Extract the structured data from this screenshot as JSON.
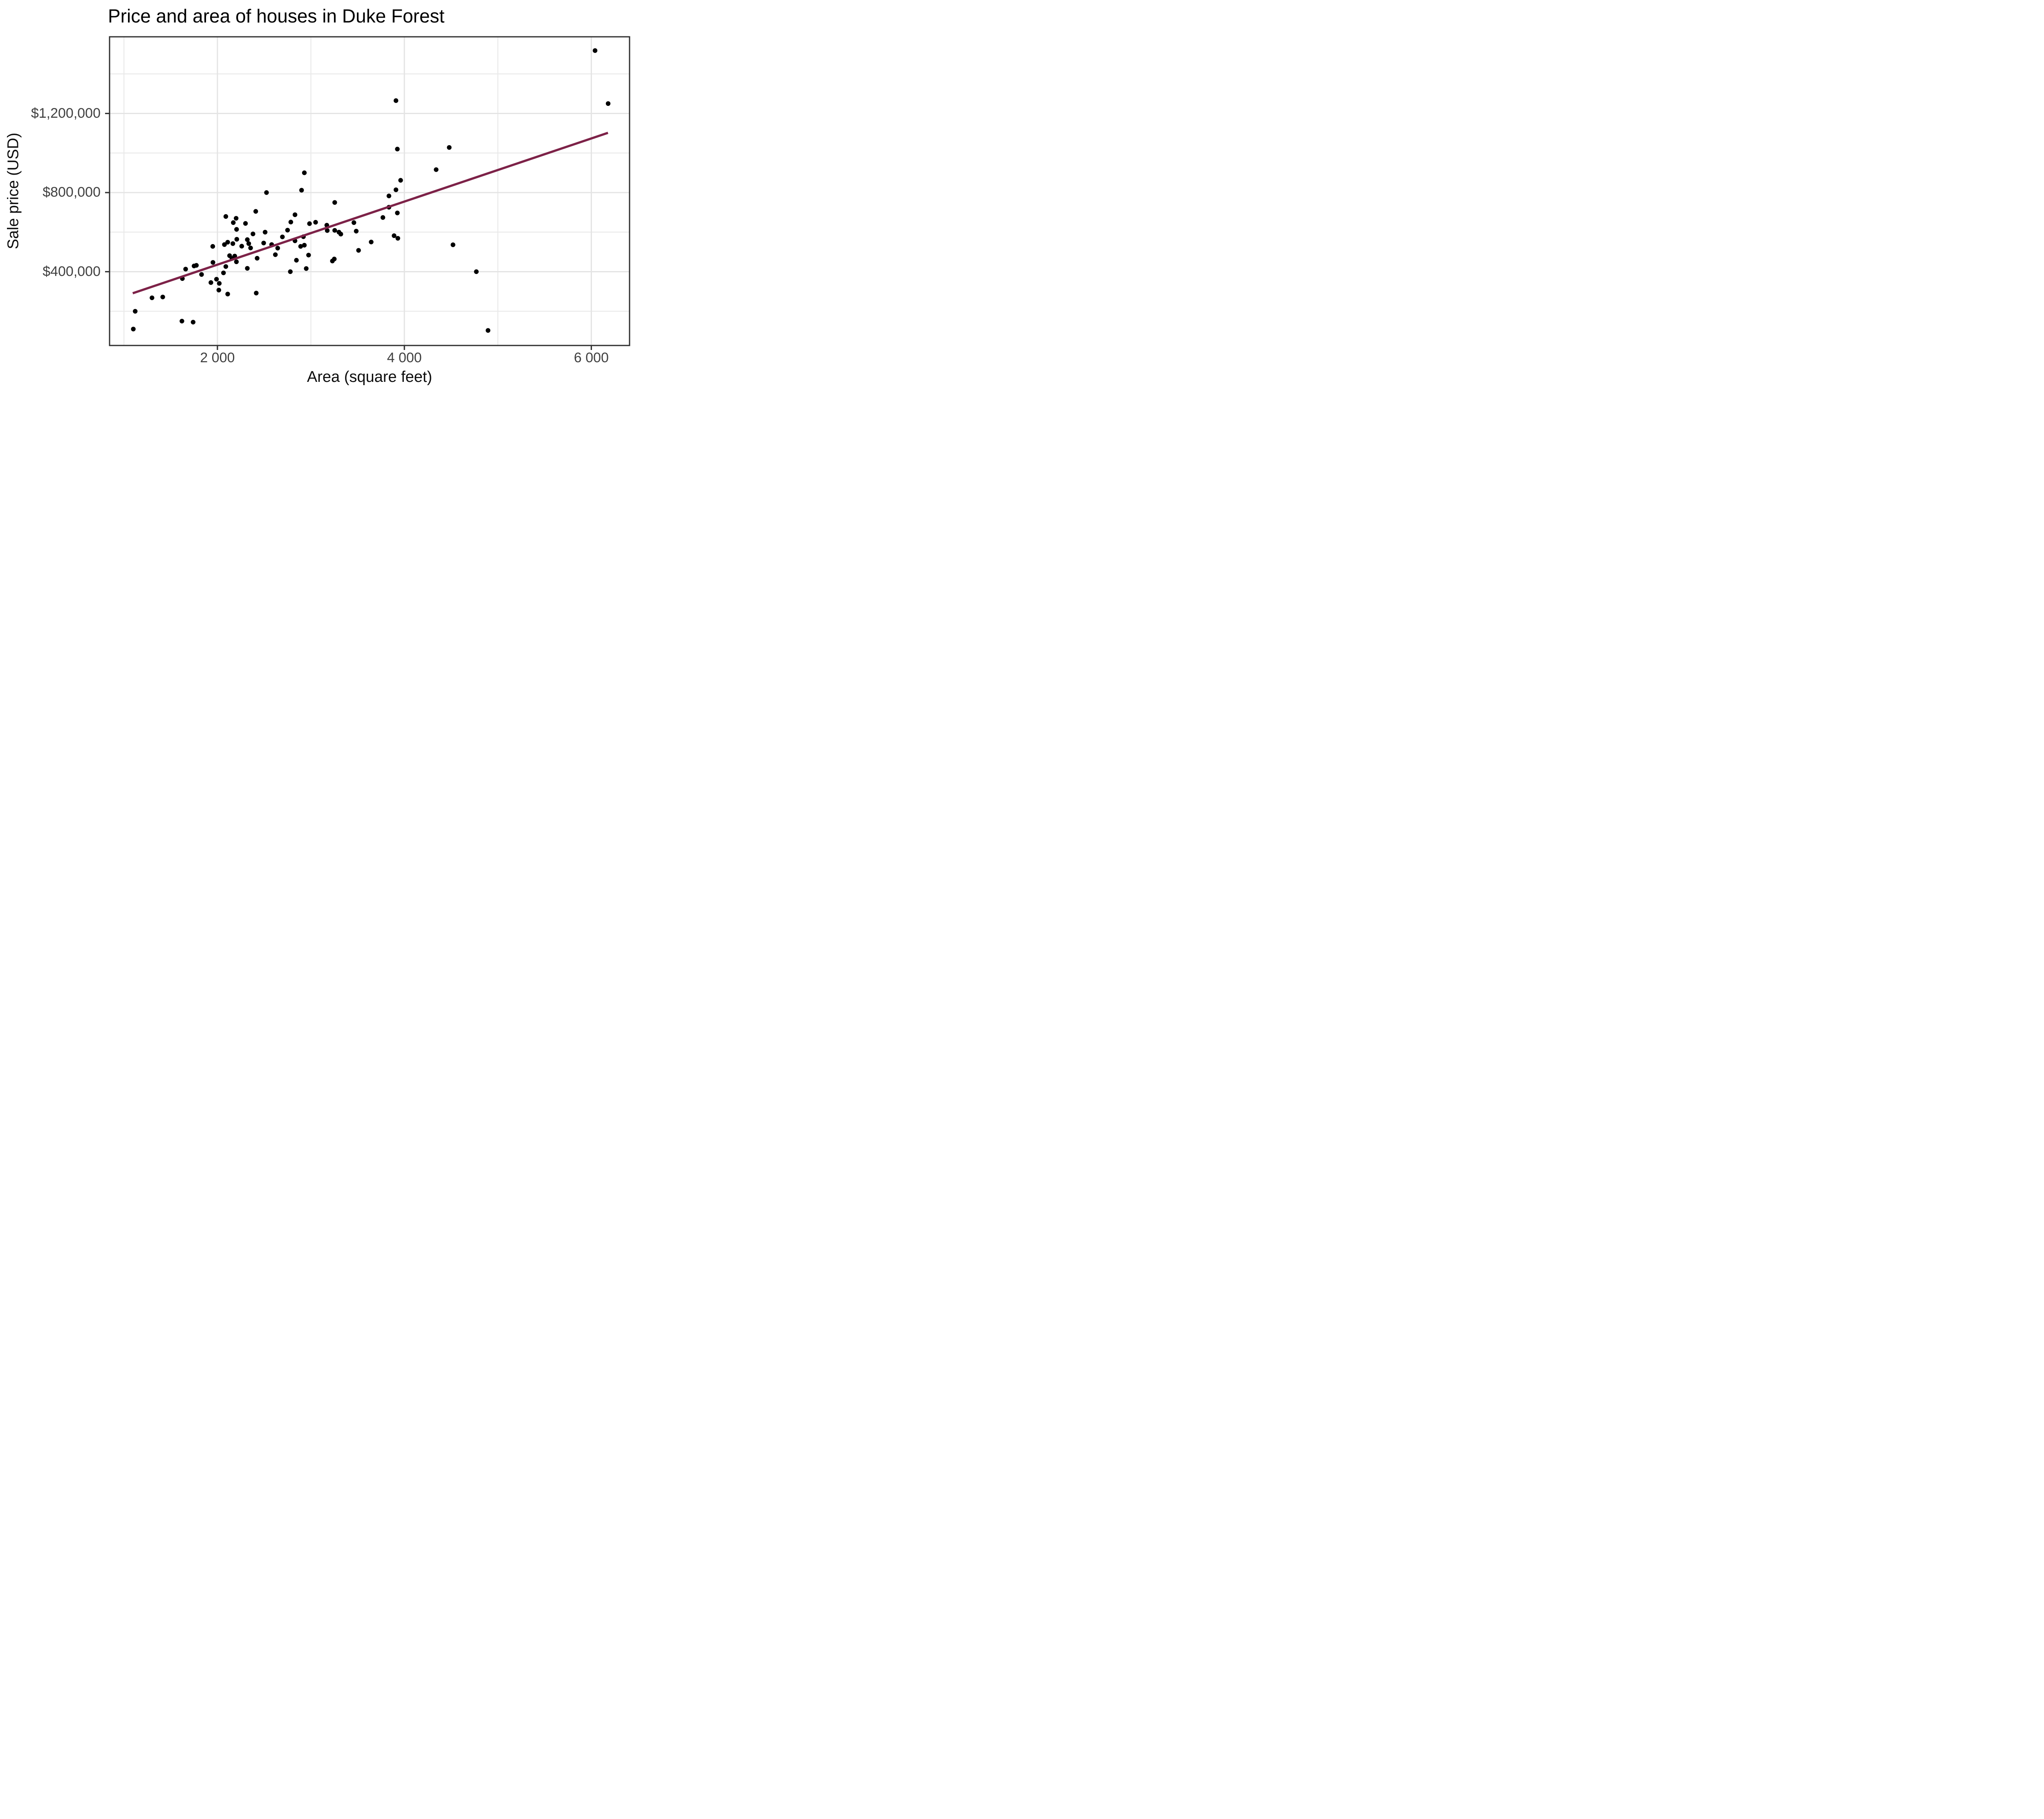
{
  "chart_data": {
    "type": "scatter",
    "title": "Price and area of houses in Duke Forest",
    "xlabel": "Area (square feet)",
    "ylabel": "Sale price (USD)",
    "xlim": [
      846,
      6409
    ],
    "ylim": [
      26900,
      1587600
    ],
    "x_ticks": {
      "values": [
        2000,
        4000,
        6000
      ],
      "labels": [
        "2 000",
        "4 000",
        "6 000"
      ]
    },
    "x_minor": [
      1000,
      3000,
      5000
    ],
    "y_ticks": {
      "values": [
        400000,
        800000,
        1200000
      ],
      "labels": [
        "$400,000",
        "$800,000",
        "$1,200,000"
      ]
    },
    "y_minor": [
      200000,
      600000,
      1000000,
      1400000
    ],
    "grid": "on",
    "legend": "none",
    "points": [
      [
        1100,
        110000
      ],
      [
        1120,
        200000
      ],
      [
        1300,
        268000
      ],
      [
        1415,
        272000
      ],
      [
        1620,
        150000
      ],
      [
        1740,
        145000
      ],
      [
        1625,
        365000
      ],
      [
        1660,
        413000
      ],
      [
        1750,
        429000
      ],
      [
        1775,
        432000
      ],
      [
        1830,
        386000
      ],
      [
        1950,
        528000
      ],
      [
        1952,
        447000
      ],
      [
        2065,
        394000
      ],
      [
        1990,
        362000
      ],
      [
        1930,
        345000
      ],
      [
        2020,
        341000
      ],
      [
        2090,
        426000
      ],
      [
        2015,
        307000
      ],
      [
        2110,
        287000
      ],
      [
        2090,
        679000
      ],
      [
        2075,
        537000
      ],
      [
        2110,
        549000
      ],
      [
        2165,
        542000
      ],
      [
        2130,
        481000
      ],
      [
        2185,
        479000
      ],
      [
        2155,
        467000
      ],
      [
        2200,
        670000
      ],
      [
        2170,
        648000
      ],
      [
        2205,
        614000
      ],
      [
        2207,
        564000
      ],
      [
        2203,
        450000
      ],
      [
        2300,
        644000
      ],
      [
        2320,
        417000
      ],
      [
        2260,
        529000
      ],
      [
        2320,
        562000
      ],
      [
        2335,
        542000
      ],
      [
        2355,
        520000
      ],
      [
        2380,
        591000
      ],
      [
        2410,
        705000
      ],
      [
        2425,
        468000
      ],
      [
        2415,
        292000
      ],
      [
        2495,
        545000
      ],
      [
        2510,
        600000
      ],
      [
        2525,
        800000
      ],
      [
        2580,
        537000
      ],
      [
        2645,
        519000
      ],
      [
        2620,
        486000
      ],
      [
        2695,
        576000
      ],
      [
        2750,
        610000
      ],
      [
        2780,
        400000
      ],
      [
        2785,
        651000
      ],
      [
        2830,
        688000
      ],
      [
        2830,
        556000
      ],
      [
        2845,
        458000
      ],
      [
        2890,
        528000
      ],
      [
        2930,
        534000
      ],
      [
        2920,
        577000
      ],
      [
        2950,
        416000
      ],
      [
        2930,
        900000
      ],
      [
        2900,
        812000
      ],
      [
        2975,
        484000
      ],
      [
        2985,
        643000
      ],
      [
        3050,
        650000
      ],
      [
        3170,
        635000
      ],
      [
        3175,
        608000
      ],
      [
        3255,
        750000
      ],
      [
        3255,
        609000
      ],
      [
        3300,
        600000
      ],
      [
        3320,
        590000
      ],
      [
        3485,
        605000
      ],
      [
        3460,
        648000
      ],
      [
        3510,
        508000
      ],
      [
        3645,
        550000
      ],
      [
        3250,
        464000
      ],
      [
        3230,
        454000
      ],
      [
        3770,
        674000
      ],
      [
        3835,
        783000
      ],
      [
        3835,
        726000
      ],
      [
        3890,
        582000
      ],
      [
        3930,
        569000
      ],
      [
        3925,
        697000
      ],
      [
        3910,
        814000
      ],
      [
        3960,
        862000
      ],
      [
        3910,
        1265000
      ],
      [
        3925,
        1020000
      ],
      [
        4480,
        1028000
      ],
      [
        4340,
        916000
      ],
      [
        4520,
        536000
      ],
      [
        4770,
        400000
      ],
      [
        4895,
        103000
      ],
      [
        6040,
        1518000
      ],
      [
        6180,
        1250000
      ]
    ],
    "trend_line": {
      "x1": 1094,
      "y1": 291000,
      "x2": 6178,
      "y2": 1102000
    },
    "colors": {
      "point": "#000000",
      "trend_line": "#7d2248",
      "grid_major": "#e4e4e4",
      "grid_minor": "#e9e9e9",
      "panel_border": "#2e2e2e",
      "tick_mark": "#333333",
      "tick_label": "#404040",
      "axis_title": "#0d0d0d",
      "title": "#000000"
    }
  }
}
